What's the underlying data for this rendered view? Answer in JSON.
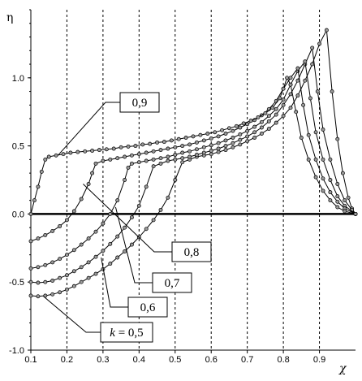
{
  "chart_data": {
    "type": "line",
    "xlabel": "χ",
    "ylabel": "η",
    "xlim": [
      0.1,
      1.0
    ],
    "ylim": [
      -1.0,
      1.5
    ],
    "xticks": [
      "0.1",
      "0.2",
      "0.3",
      "0.4",
      "0.5",
      "0.6",
      "0.7",
      "0.8",
      "0.9"
    ],
    "yticks": [
      "1.0",
      "0.5",
      "0.0",
      "-0.5",
      "-1.0"
    ],
    "grid": true,
    "series": [
      {
        "name": "k = 0,5",
        "label_prefix": "k",
        "label_value": "= 0,5",
        "points": [
          [
            0.1,
            -0.6
          ],
          [
            0.12,
            -0.605
          ],
          [
            0.14,
            -0.6
          ],
          [
            0.16,
            -0.59
          ],
          [
            0.18,
            -0.575
          ],
          [
            0.2,
            -0.555
          ],
          [
            0.22,
            -0.53
          ],
          [
            0.24,
            -0.5
          ],
          [
            0.26,
            -0.47
          ],
          [
            0.28,
            -0.44
          ],
          [
            0.3,
            -0.405
          ],
          [
            0.32,
            -0.365
          ],
          [
            0.34,
            -0.32
          ],
          [
            0.36,
            -0.275
          ],
          [
            0.38,
            -0.225
          ],
          [
            0.4,
            -0.17
          ],
          [
            0.42,
            -0.11
          ],
          [
            0.44,
            -0.045
          ],
          [
            0.46,
            0.03
          ],
          [
            0.48,
            0.12
          ],
          [
            0.5,
            0.25
          ],
          [
            0.52,
            0.38
          ],
          [
            0.54,
            0.4
          ],
          [
            0.56,
            0.42
          ],
          [
            0.58,
            0.43
          ],
          [
            0.6,
            0.44
          ],
          [
            0.62,
            0.455
          ],
          [
            0.64,
            0.47
          ],
          [
            0.66,
            0.49
          ],
          [
            0.68,
            0.51
          ],
          [
            0.7,
            0.535
          ],
          [
            0.72,
            0.56
          ],
          [
            0.74,
            0.59
          ],
          [
            0.76,
            0.625
          ],
          [
            0.78,
            0.67
          ],
          [
            0.8,
            0.72
          ],
          [
            0.82,
            0.78
          ],
          [
            0.84,
            0.87
          ],
          [
            0.86,
            0.98
          ],
          [
            0.88,
            1.1
          ],
          [
            0.9,
            1.25
          ],
          [
            0.92,
            1.35
          ],
          [
            0.935,
            0.9
          ],
          [
            0.95,
            0.55
          ],
          [
            0.965,
            0.3
          ],
          [
            0.98,
            0.12
          ],
          [
            0.99,
            0.04
          ],
          [
            1.0,
            0.0
          ]
        ]
      },
      {
        "name": "0,6",
        "label_value": "0,6",
        "points": [
          [
            0.1,
            -0.5
          ],
          [
            0.12,
            -0.505
          ],
          [
            0.14,
            -0.5
          ],
          [
            0.16,
            -0.49
          ],
          [
            0.18,
            -0.47
          ],
          [
            0.2,
            -0.45
          ],
          [
            0.22,
            -0.42
          ],
          [
            0.24,
            -0.39
          ],
          [
            0.26,
            -0.355
          ],
          [
            0.28,
            -0.315
          ],
          [
            0.3,
            -0.27
          ],
          [
            0.32,
            -0.22
          ],
          [
            0.34,
            -0.165
          ],
          [
            0.36,
            -0.1
          ],
          [
            0.38,
            -0.025
          ],
          [
            0.4,
            0.06
          ],
          [
            0.42,
            0.2
          ],
          [
            0.44,
            0.35
          ],
          [
            0.46,
            0.37
          ],
          [
            0.48,
            0.39
          ],
          [
            0.5,
            0.4
          ],
          [
            0.52,
            0.41
          ],
          [
            0.54,
            0.42
          ],
          [
            0.56,
            0.435
          ],
          [
            0.58,
            0.45
          ],
          [
            0.6,
            0.465
          ],
          [
            0.62,
            0.48
          ],
          [
            0.64,
            0.5
          ],
          [
            0.66,
            0.52
          ],
          [
            0.68,
            0.545
          ],
          [
            0.7,
            0.57
          ],
          [
            0.72,
            0.6
          ],
          [
            0.74,
            0.635
          ],
          [
            0.76,
            0.68
          ],
          [
            0.78,
            0.73
          ],
          [
            0.8,
            0.8
          ],
          [
            0.82,
            0.88
          ],
          [
            0.84,
            0.98
          ],
          [
            0.86,
            1.1
          ],
          [
            0.88,
            1.22
          ],
          [
            0.895,
            0.9
          ],
          [
            0.91,
            0.62
          ],
          [
            0.93,
            0.4
          ],
          [
            0.95,
            0.22
          ],
          [
            0.97,
            0.1
          ],
          [
            0.99,
            0.03
          ],
          [
            1.0,
            0.0
          ]
        ]
      },
      {
        "name": "0,7",
        "label_value": "0,7",
        "points": [
          [
            0.1,
            -0.4
          ],
          [
            0.12,
            -0.39
          ],
          [
            0.14,
            -0.375
          ],
          [
            0.16,
            -0.355
          ],
          [
            0.18,
            -0.33
          ],
          [
            0.2,
            -0.3
          ],
          [
            0.22,
            -0.265
          ],
          [
            0.24,
            -0.225
          ],
          [
            0.26,
            -0.18
          ],
          [
            0.28,
            -0.13
          ],
          [
            0.3,
            -0.07
          ],
          [
            0.32,
            0.0
          ],
          [
            0.34,
            0.1
          ],
          [
            0.36,
            0.25
          ],
          [
            0.37,
            0.34
          ],
          [
            0.38,
            0.37
          ],
          [
            0.4,
            0.38
          ],
          [
            0.42,
            0.39
          ],
          [
            0.44,
            0.4
          ],
          [
            0.46,
            0.41
          ],
          [
            0.48,
            0.42
          ],
          [
            0.5,
            0.435
          ],
          [
            0.52,
            0.45
          ],
          [
            0.54,
            0.46
          ],
          [
            0.56,
            0.475
          ],
          [
            0.58,
            0.49
          ],
          [
            0.6,
            0.505
          ],
          [
            0.62,
            0.52
          ],
          [
            0.64,
            0.54
          ],
          [
            0.66,
            0.56
          ],
          [
            0.68,
            0.585
          ],
          [
            0.7,
            0.61
          ],
          [
            0.72,
            0.64
          ],
          [
            0.74,
            0.675
          ],
          [
            0.76,
            0.72
          ],
          [
            0.78,
            0.77
          ],
          [
            0.8,
            0.84
          ],
          [
            0.82,
            0.95
          ],
          [
            0.84,
            1.05
          ],
          [
            0.86,
            1.12
          ],
          [
            0.875,
            0.85
          ],
          [
            0.89,
            0.6
          ],
          [
            0.91,
            0.4
          ],
          [
            0.93,
            0.25
          ],
          [
            0.95,
            0.13
          ],
          [
            0.97,
            0.06
          ],
          [
            1.0,
            0.0
          ]
        ]
      },
      {
        "name": "0,8",
        "label_value": "0,8",
        "points": [
          [
            0.1,
            -0.2
          ],
          [
            0.12,
            -0.18
          ],
          [
            0.14,
            -0.155
          ],
          [
            0.16,
            -0.125
          ],
          [
            0.18,
            -0.09
          ],
          [
            0.2,
            -0.045
          ],
          [
            0.22,
            0.02
          ],
          [
            0.24,
            0.11
          ],
          [
            0.26,
            0.22
          ],
          [
            0.27,
            0.3
          ],
          [
            0.28,
            0.37
          ],
          [
            0.3,
            0.39
          ],
          [
            0.32,
            0.4
          ],
          [
            0.34,
            0.41
          ],
          [
            0.36,
            0.42
          ],
          [
            0.38,
            0.43
          ],
          [
            0.4,
            0.44
          ],
          [
            0.42,
            0.45
          ],
          [
            0.44,
            0.46
          ],
          [
            0.46,
            0.47
          ],
          [
            0.48,
            0.48
          ],
          [
            0.5,
            0.49
          ],
          [
            0.52,
            0.5
          ],
          [
            0.54,
            0.51
          ],
          [
            0.56,
            0.525
          ],
          [
            0.58,
            0.54
          ],
          [
            0.6,
            0.555
          ],
          [
            0.62,
            0.57
          ],
          [
            0.64,
            0.59
          ],
          [
            0.66,
            0.61
          ],
          [
            0.68,
            0.635
          ],
          [
            0.7,
            0.66
          ],
          [
            0.72,
            0.69
          ],
          [
            0.74,
            0.725
          ],
          [
            0.76,
            0.77
          ],
          [
            0.78,
            0.83
          ],
          [
            0.8,
            0.92
          ],
          [
            0.82,
            1.0
          ],
          [
            0.84,
            1.07
          ],
          [
            0.855,
            0.8
          ],
          [
            0.87,
            0.58
          ],
          [
            0.89,
            0.4
          ],
          [
            0.91,
            0.26
          ],
          [
            0.93,
            0.16
          ],
          [
            0.95,
            0.09
          ],
          [
            0.97,
            0.04
          ],
          [
            1.0,
            0.0
          ]
        ]
      },
      {
        "name": "0,9",
        "label_value": "0,9",
        "points": [
          [
            0.1,
            0.0
          ],
          [
            0.11,
            0.1
          ],
          [
            0.12,
            0.2
          ],
          [
            0.13,
            0.31
          ],
          [
            0.14,
            0.4
          ],
          [
            0.15,
            0.42
          ],
          [
            0.17,
            0.43
          ],
          [
            0.19,
            0.44
          ],
          [
            0.21,
            0.45
          ],
          [
            0.23,
            0.455
          ],
          [
            0.25,
            0.46
          ],
          [
            0.27,
            0.465
          ],
          [
            0.29,
            0.47
          ],
          [
            0.31,
            0.475
          ],
          [
            0.33,
            0.48
          ],
          [
            0.35,
            0.49
          ],
          [
            0.37,
            0.495
          ],
          [
            0.39,
            0.5
          ],
          [
            0.41,
            0.51
          ],
          [
            0.43,
            0.515
          ],
          [
            0.45,
            0.525
          ],
          [
            0.47,
            0.53
          ],
          [
            0.49,
            0.54
          ],
          [
            0.51,
            0.55
          ],
          [
            0.53,
            0.56
          ],
          [
            0.55,
            0.57
          ],
          [
            0.57,
            0.58
          ],
          [
            0.59,
            0.59
          ],
          [
            0.61,
            0.6
          ],
          [
            0.63,
            0.615
          ],
          [
            0.65,
            0.63
          ],
          [
            0.67,
            0.645
          ],
          [
            0.69,
            0.665
          ],
          [
            0.71,
            0.685
          ],
          [
            0.73,
            0.71
          ],
          [
            0.75,
            0.74
          ],
          [
            0.77,
            0.78
          ],
          [
            0.79,
            0.85
          ],
          [
            0.8,
            0.92
          ],
          [
            0.81,
            1.0
          ],
          [
            0.82,
            0.95
          ],
          [
            0.835,
            0.75
          ],
          [
            0.85,
            0.56
          ],
          [
            0.87,
            0.4
          ],
          [
            0.89,
            0.27
          ],
          [
            0.91,
            0.17
          ],
          [
            0.93,
            0.1
          ],
          [
            0.95,
            0.05
          ],
          [
            0.97,
            0.02
          ],
          [
            1.0,
            0.0
          ]
        ]
      }
    ]
  }
}
